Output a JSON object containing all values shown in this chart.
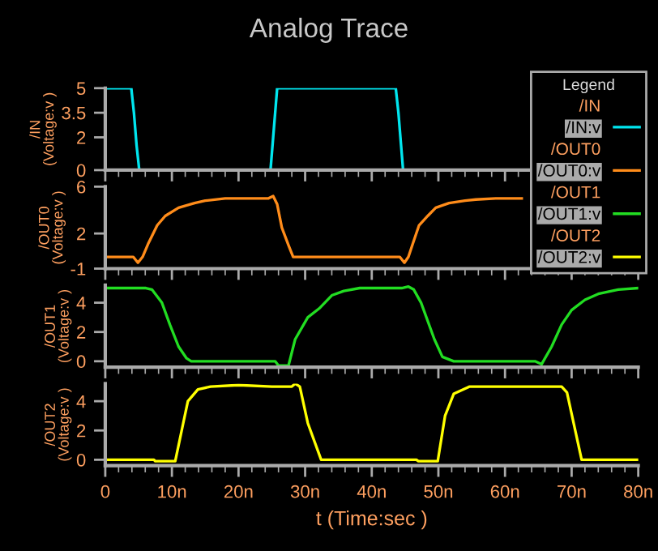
{
  "chart_data": [
    {
      "type": "line",
      "title": "Analog Trace",
      "ylabel": "/IN (Voltage:v )",
      "annotations": [
        "/IN"
      ],
      "legend": "top right",
      "legend_title": "Legend",
      "tick_labels": "y",
      "grid": false,
      "xlim": [
        0,
        80
      ],
      "ylim": [
        0,
        5
      ],
      "yticks": [
        0,
        2,
        3.5,
        5
      ],
      "series": [
        {
          "name": "/IN:v",
          "color": "#00e5ee",
          "x": [
            0,
            3.9,
            4.3,
            4.7,
            5.1,
            24.8,
            25.2,
            25.6,
            25.8,
            43.6,
            44,
            44.4,
            44.7,
            62.5
          ],
          "values": [
            5,
            5,
            3.5,
            1.5,
            0,
            0,
            2,
            4,
            5,
            5,
            3.5,
            1.5,
            0,
            0
          ]
        }
      ]
    },
    {
      "type": "line",
      "ylabel": "/OUT0 (Voltage:v )",
      "annotations": [
        "/OUT0"
      ],
      "tick_labels": "y",
      "grid": false,
      "xlim": [
        0,
        80
      ],
      "ylim": [
        -1,
        6
      ],
      "yticks": [
        -1,
        2,
        6
      ],
      "series": [
        {
          "name": "/OUT0:v",
          "color": "#ff8c1a",
          "x": [
            0,
            4.2,
            4.9,
            5.6,
            6.5,
            7.8,
            9,
            11,
            13.4,
            15,
            18,
            24.5,
            25.2,
            25.8,
            26.5,
            27.5,
            28.2,
            44.2,
            44.9,
            45.5,
            46.2,
            47.1,
            48.4,
            49.6,
            51.6,
            54,
            55.6,
            58.6,
            62.5
          ],
          "values": [
            0,
            0,
            -0.5,
            0,
            1.2,
            2.7,
            3.5,
            4.2,
            4.6,
            4.8,
            5,
            5,
            5.2,
            4.5,
            2.5,
            1,
            0,
            0,
            -0.5,
            0,
            1.2,
            2.7,
            3.5,
            4.2,
            4.6,
            4.8,
            4.9,
            5,
            5
          ]
        }
      ]
    },
    {
      "type": "line",
      "ylabel": "/OUT1 (Voltage:v )",
      "annotations": [
        "/OUT1"
      ],
      "tick_labels": "y",
      "grid": false,
      "xlim": [
        0,
        80
      ],
      "ylim": [
        -0.4,
        5.2
      ],
      "yticks": [
        0,
        2,
        4
      ],
      "series": [
        {
          "name": "/OUT1:v",
          "color": "#22dd22",
          "x": [
            0,
            6.1,
            7,
            8.5,
            9.7,
            11,
            12.2,
            12.9,
            25.5,
            26,
            27.5,
            28.5,
            30.4,
            32.1,
            34,
            35.8,
            38.2,
            44.5,
            45.5,
            46.3,
            47.4,
            49.4,
            50.6,
            52.3,
            64.5,
            65.5,
            67,
            68.5,
            70,
            72,
            74,
            77,
            80
          ],
          "values": [
            5,
            5,
            4.9,
            4,
            2.5,
            1,
            0.2,
            0,
            0,
            -0.3,
            -0.3,
            1.5,
            3,
            3.6,
            4.5,
            4.8,
            5,
            5,
            5.1,
            4.9,
            4,
            1.5,
            0.3,
            0,
            0,
            -0.2,
            1,
            2.5,
            3.5,
            4.2,
            4.6,
            4.9,
            5
          ]
        }
      ]
    },
    {
      "type": "line",
      "ylabel": "/OUT2 (Voltage:v )",
      "annotations": [
        "/OUT2"
      ],
      "xlabel": "t (Time:sec )",
      "grid": false,
      "xlim": [
        0,
        80
      ],
      "ylim": [
        -0.4,
        5.2
      ],
      "yticks": [
        0,
        2,
        4
      ],
      "xticks": [
        0,
        {
          "value": 10,
          "label": "10n"
        },
        {
          "value": 20,
          "label": "20n"
        },
        {
          "value": 30,
          "label": "30n"
        },
        {
          "value": 40,
          "label": "40n"
        },
        {
          "value": 50,
          "label": "50n"
        },
        {
          "value": 60,
          "label": "60n"
        },
        {
          "value": 70,
          "label": "70n"
        },
        {
          "value": 80,
          "label": "80n"
        }
      ],
      "series": [
        {
          "name": "/OUT2:v",
          "color": "#ffff00",
          "x": [
            0,
            7.3,
            7.5,
            10.5,
            11.7,
            12.4,
            13.9,
            15.8,
            20,
            25,
            28,
            28.5,
            29.2,
            30.4,
            32.4,
            46.7,
            47,
            49.9,
            51,
            52.3,
            54.7,
            60,
            68.5,
            69.3,
            70.3,
            71.5,
            80
          ],
          "values": [
            0,
            0,
            -0.1,
            -0.1,
            2.5,
            4,
            4.8,
            5,
            5.1,
            5,
            5,
            5.2,
            5,
            2.5,
            0,
            0,
            -0.1,
            -0.1,
            3,
            4.5,
            5,
            5,
            5,
            4.6,
            2.5,
            0,
            0
          ]
        }
      ]
    }
  ]
}
